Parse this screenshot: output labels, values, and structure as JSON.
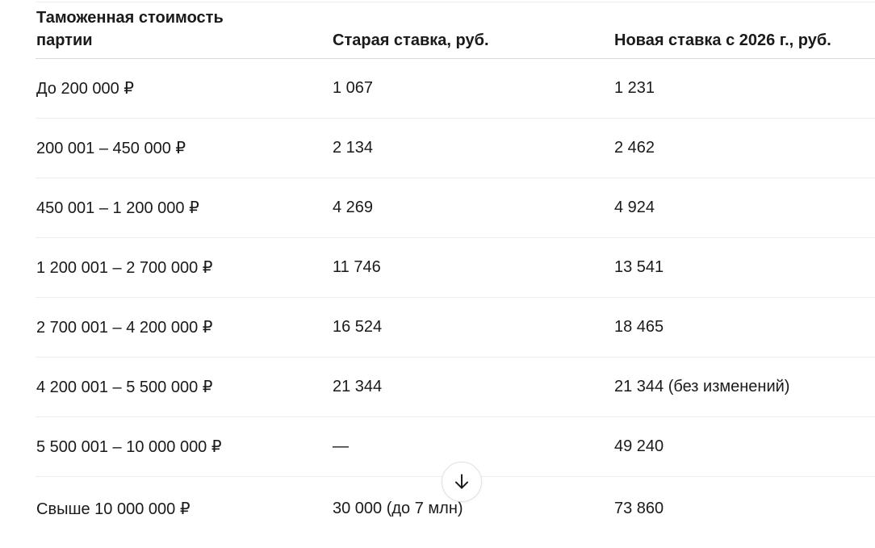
{
  "table": {
    "headers": [
      "Таможенная стоимость партии",
      "Старая ставка, руб.",
      "Новая ставка с 2026 г., руб."
    ],
    "rows": [
      [
        "До 200 000 ₽",
        "1 067",
        "1 231"
      ],
      [
        "200 001 – 450 000 ₽",
        "2 134",
        "2 462"
      ],
      [
        "450 001 – 1 200 000 ₽",
        "4 269",
        "4 924"
      ],
      [
        "1 200 001 – 2 700 000 ₽",
        "11 746",
        "13 541"
      ],
      [
        "2 700 001 – 4 200 000 ₽",
        "16 524",
        "18 465"
      ],
      [
        "4 200 001 – 5 500 000 ₽",
        "21 344",
        "21 344 (без изменений)"
      ],
      [
        "5 500 001 – 10 000 000 ₽",
        "—",
        "49 240"
      ],
      [
        "Свыше 10 000 000 ₽",
        "30 000 (до 7 млн)",
        "73 860"
      ]
    ]
  },
  "scroll_button": {
    "icon": "arrow-down-icon"
  }
}
